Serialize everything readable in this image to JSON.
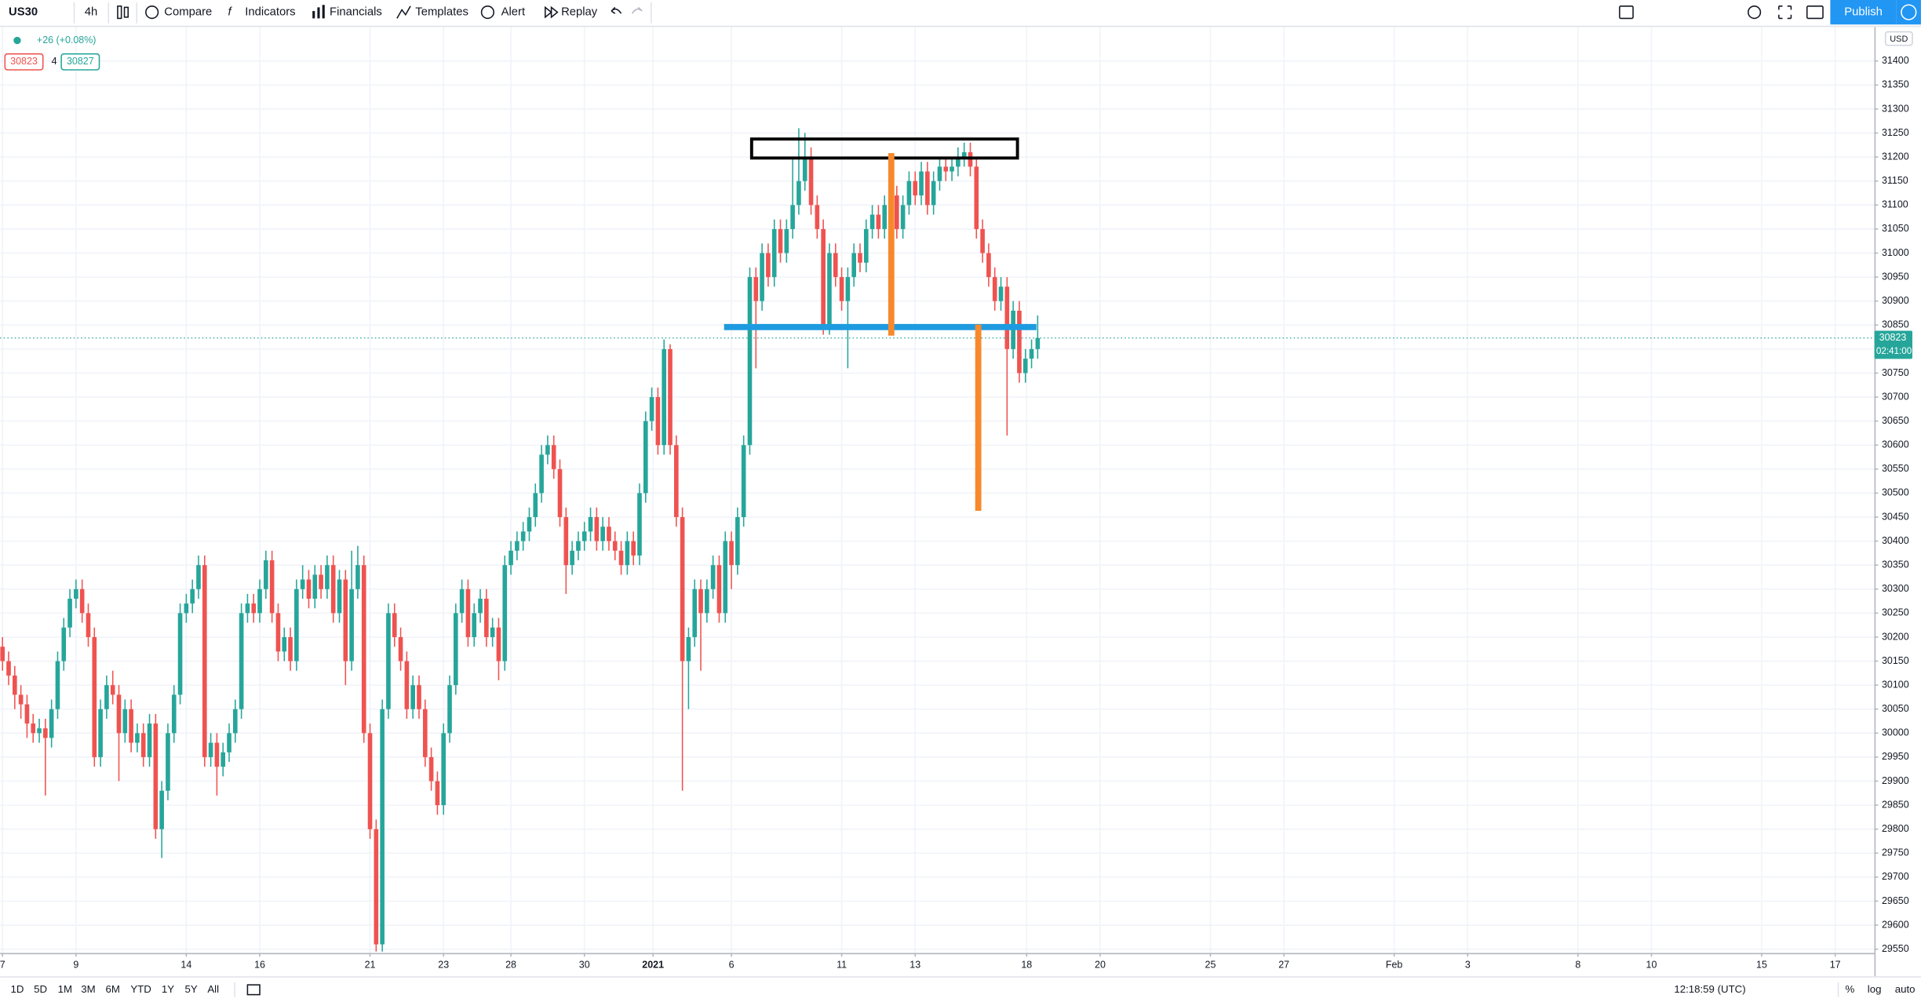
{
  "toolbar": {
    "symbol": "US30",
    "interval": "4h",
    "items": [
      "Compare",
      "Indicators",
      "Financials",
      "Templates",
      "Alert",
      "Replay"
    ],
    "publish": "Publish"
  },
  "legend": {
    "change": "+26 (+0.08%)",
    "bid": "30823",
    "spread": "4",
    "ask": "30827"
  },
  "bottom_bar": {
    "ranges": [
      "1D",
      "5D",
      "1M",
      "3M",
      "6M",
      "YTD",
      "1Y",
      "5Y",
      "All"
    ],
    "clock": "12:18:59 (UTC)",
    "options": [
      "%",
      "log",
      "auto"
    ]
  },
  "chart_data": {
    "type": "candlestick",
    "currency": "USD",
    "countdown": "02:41:00",
    "up_color": "#26a69a",
    "down_color": "#ef5350",
    "grid": true,
    "xlim": [
      -0.4,
      305.6
    ],
    "ylim": [
      29542,
      31471
    ],
    "xticks": [
      {
        "value": 0,
        "label": "7"
      },
      {
        "value": 12,
        "label": "9"
      },
      {
        "value": 30,
        "label": "14"
      },
      {
        "value": 42,
        "label": "16"
      },
      {
        "value": 60,
        "label": "21"
      },
      {
        "value": 72,
        "label": "23"
      },
      {
        "value": 83,
        "label": "28"
      },
      {
        "value": 95,
        "label": "30"
      },
      {
        "value": 106.2,
        "label": "2021"
      },
      {
        "value": 119,
        "label": "6"
      },
      {
        "value": 137,
        "label": "11"
      },
      {
        "value": 149,
        "label": "13"
      },
      {
        "value": 167.2,
        "label": "18"
      },
      {
        "value": 179.2,
        "label": "20"
      },
      {
        "value": 197.2,
        "label": "25"
      },
      {
        "value": 209.2,
        "label": "27"
      },
      {
        "value": 227.2,
        "label": "Feb"
      },
      {
        "value": 239.2,
        "label": "3"
      },
      {
        "value": 257.2,
        "label": "8"
      },
      {
        "value": 269.2,
        "label": "10"
      },
      {
        "value": 287.2,
        "label": "15"
      },
      {
        "value": 299.2,
        "label": "17"
      }
    ],
    "yticks": [
      29550,
      29600,
      29650,
      29700,
      29750,
      29800,
      29850,
      29900,
      29950,
      30000,
      30050,
      30100,
      30150,
      30200,
      30250,
      30300,
      30350,
      30400,
      30450,
      30500,
      30550,
      30600,
      30650,
      30700,
      30750,
      30800,
      30850,
      30900,
      30950,
      31000,
      31050,
      31100,
      31150,
      31200,
      31250,
      31300,
      31350,
      31400
    ],
    "open": [
      30180,
      30150,
      30120,
      30080,
      30060,
      30020,
      30000,
      30010,
      29990,
      30050,
      30150,
      30220,
      30280,
      30300,
      30250,
      30200,
      29950,
      30050,
      30100,
      30080,
      30000,
      30050,
      29980,
      30000,
      29950,
      30020,
      29800,
      29880,
      30000,
      30080,
      30250,
      30270,
      30300,
      30350,
      29950,
      29980,
      29930,
      29960,
      30000,
      30050,
      30250,
      30270,
      30250,
      30300,
      30360,
      30250,
      30170,
      30200,
      30150,
      30300,
      30320,
      30280,
      30330,
      30300,
      30350,
      30250,
      30320,
      30150,
      30300,
      30350,
      30000,
      29800,
      29560,
      30050,
      30250,
      30200,
      30150,
      30050,
      30100,
      30050,
      29950,
      29900,
      29850,
      30000,
      30100,
      30250,
      30300,
      30200,
      30250,
      30280,
      30200,
      30220,
      30150,
      30350,
      30380,
      30400,
      30420,
      30450,
      30500,
      30580,
      30600,
      30550,
      30450,
      30350,
      30380,
      30400,
      30420,
      30450,
      30400,
      30430,
      30400,
      30380,
      30350,
      30400,
      30370,
      30500,
      30650,
      30700,
      30600,
      30800,
      30600,
      30450,
      30150,
      30200,
      30300,
      30250,
      30300,
      30350,
      30250,
      30400,
      30350,
      30450,
      30600,
      30950,
      30900,
      31000,
      30950,
      31050,
      31000,
      31050,
      31100,
      31150,
      31200,
      31100,
      31050,
      30850,
      31000,
      30950,
      30900,
      30950,
      31000,
      30980,
      31050,
      31080,
      31050,
      31100,
      31120,
      31050,
      31100,
      31150,
      31120,
      31170,
      31100,
      31150,
      31180,
      31170,
      31180,
      31200,
      31210,
      31180,
      31050,
      31000,
      30950,
      30900,
      30930,
      30800,
      30880,
      30750,
      30780,
      30800
    ],
    "high": [
      30200,
      30170,
      30140,
      30100,
      30080,
      30040,
      30030,
      30030,
      30070,
      30170,
      30240,
      30300,
      30320,
      30320,
      30270,
      30220,
      30070,
      30120,
      30130,
      30100,
      30070,
      30070,
      30020,
      30020,
      30040,
      30040,
      29900,
      30020,
      30100,
      30270,
      30290,
      30320,
      30370,
      30370,
      30000,
      30000,
      29980,
      30020,
      30070,
      30270,
      30290,
      30290,
      30320,
      30380,
      30380,
      30270,
      30220,
      30220,
      30320,
      30350,
      30340,
      30350,
      30350,
      30370,
      30370,
      30340,
      30340,
      30380,
      30390,
      30370,
      30020,
      29820,
      30070,
      30270,
      30270,
      30220,
      30170,
      30120,
      30120,
      30070,
      29970,
      29920,
      30020,
      30120,
      30270,
      30320,
      30320,
      30270,
      30300,
      30300,
      30240,
      30240,
      30370,
      30400,
      30420,
      30440,
      30470,
      30520,
      30600,
      30620,
      30620,
      30570,
      30470,
      30400,
      30420,
      30440,
      30470,
      30470,
      30450,
      30450,
      30420,
      30400,
      30420,
      30420,
      30520,
      30670,
      30720,
      30720,
      30820,
      30810,
      30620,
      30470,
      30220,
      30320,
      30320,
      30320,
      30370,
      30370,
      30420,
      30420,
      30470,
      30620,
      30970,
      30970,
      31020,
      31020,
      31070,
      31070,
      31070,
      31200,
      31260,
      31250,
      31220,
      31120,
      31070,
      31020,
      31020,
      30970,
      30970,
      31020,
      31020,
      31070,
      31100,
      31100,
      31120,
      31140,
      31140,
      31120,
      31170,
      31170,
      31190,
      31190,
      31170,
      31200,
      31200,
      31200,
      31220,
      31230,
      31230,
      31200,
      31070,
      31020,
      30970,
      30950,
      30950,
      30900,
      30900,
      30800,
      30820,
      30870
    ],
    "low": [
      30130,
      30100,
      30050,
      30030,
      29990,
      29980,
      29980,
      29870,
      29970,
      30030,
      30130,
      30200,
      30260,
      30230,
      30180,
      29930,
      29930,
      30030,
      30060,
      29900,
      29980,
      29960,
      29960,
      29930,
      29930,
      29780,
      29740,
      29860,
      29980,
      30060,
      30230,
      30250,
      30280,
      29930,
      29930,
      29870,
      29910,
      29940,
      29980,
      30030,
      30230,
      30230,
      30230,
      30280,
      30230,
      30150,
      30150,
      30130,
      30130,
      30280,
      30260,
      30260,
      30280,
      30280,
      30230,
      30230,
      30100,
      30130,
      30280,
      29980,
      29780,
      29545,
      29545,
      30030,
      30180,
      30130,
      30030,
      30030,
      30030,
      29930,
      29880,
      29830,
      29830,
      29980,
      30080,
      30230,
      30180,
      30180,
      30230,
      30180,
      30180,
      30110,
      30130,
      30330,
      30360,
      30380,
      30400,
      30430,
      30480,
      30560,
      30530,
      30430,
      30290,
      30330,
      30360,
      30380,
      30400,
      30380,
      30380,
      30380,
      30360,
      30330,
      30330,
      30350,
      30350,
      30480,
      30630,
      30580,
      30580,
      30580,
      30430,
      29880,
      30050,
      30180,
      30130,
      30230,
      30280,
      30230,
      30230,
      30300,
      30330,
      30430,
      30580,
      30760,
      30880,
      30930,
      30930,
      30980,
      30980,
      31030,
      31080,
      31130,
      31080,
      31030,
      30830,
      30830,
      30930,
      30880,
      30760,
      30930,
      30960,
      30960,
      31030,
      31030,
      31030,
      31080,
      31030,
      31030,
      31080,
      31100,
      31100,
      31080,
      31080,
      31130,
      31150,
      31150,
      31160,
      31180,
      31160,
      31030,
      30980,
      30930,
      30880,
      30880,
      30620,
      30780,
      30730,
      30730,
      30760,
      30780
    ],
    "close": [
      30150,
      30120,
      30080,
      30060,
      30020,
      30000,
      30010,
      29990,
      30050,
      30150,
      30220,
      30280,
      30300,
      30250,
      30200,
      29950,
      30050,
      30100,
      30080,
      30000,
      30050,
      29980,
      30000,
      29950,
      30020,
      29800,
      29880,
      30000,
      30080,
      30250,
      30270,
      30300,
      30350,
      29950,
      29980,
      29930,
      29960,
      30000,
      30050,
      30250,
      30270,
      30250,
      30300,
      30360,
      30250,
      30170,
      30200,
      30150,
      30300,
      30320,
      30280,
      30330,
      30300,
      30350,
      30250,
      30320,
      30150,
      30300,
      30350,
      30000,
      29800,
      29560,
      30050,
      30250,
      30200,
      30150,
      30050,
      30100,
      30050,
      29950,
      29900,
      29850,
      30000,
      30100,
      30250,
      30300,
      30200,
      30250,
      30280,
      30200,
      30220,
      30150,
      30350,
      30380,
      30400,
      30420,
      30450,
      30500,
      30580,
      30600,
      30550,
      30450,
      30350,
      30380,
      30400,
      30420,
      30450,
      30400,
      30430,
      30400,
      30380,
      30350,
      30400,
      30370,
      30500,
      30650,
      30700,
      30600,
      30800,
      30600,
      30450,
      30150,
      30200,
      30300,
      30250,
      30300,
      30350,
      30250,
      30400,
      30350,
      30450,
      30600,
      30950,
      30900,
      31000,
      30950,
      31050,
      31000,
      31050,
      31100,
      31150,
      31200,
      31100,
      31050,
      30850,
      31000,
      30950,
      30900,
      30950,
      31000,
      30980,
      31050,
      31080,
      31050,
      31100,
      31120,
      31050,
      31100,
      31150,
      31120,
      31170,
      31100,
      31150,
      31180,
      31170,
      31180,
      31200,
      31210,
      31180,
      31050,
      31000,
      30950,
      30900,
      30930,
      30800,
      30880,
      30750,
      30780,
      30800,
      30823
    ]
  }
}
